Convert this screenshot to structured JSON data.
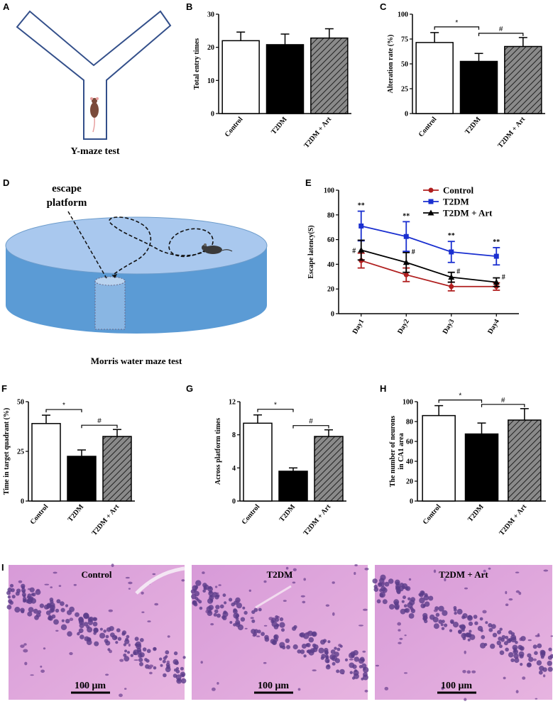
{
  "colors": {
    "control": "#ffffff",
    "t2dm": "#000000",
    "art": "#8a8a8a",
    "line_control": "#b01e1e",
    "line_t2dm": "#1a2fd0",
    "line_art": "#000000",
    "water_top": "#a9c8ee",
    "water_side": "#5b9bd5"
  },
  "panelA": {
    "letter": "A",
    "caption": "Y-maze test"
  },
  "panelD": {
    "letter": "D",
    "caption": "Morris water maze test",
    "label_line1": "escape",
    "label_line2": "platform"
  },
  "panelI": {
    "letter": "I",
    "images": [
      {
        "label": "Control",
        "scale": "100 μm"
      },
      {
        "label": "T2DM",
        "scale": "100 μm"
      },
      {
        "label": "T2DM + Art",
        "scale": "100 μm"
      }
    ]
  },
  "chart_data": [
    {
      "id": "B",
      "letter": "B",
      "type": "bar",
      "categories": [
        "Control",
        "T2DM",
        "T2DM + Art"
      ],
      "values": [
        22,
        20.8,
        22.8
      ],
      "errors": [
        2.6,
        3.2,
        2.8
      ],
      "ylabel": "Total entry times",
      "ylim": [
        0,
        30
      ],
      "yticks": [
        0,
        10,
        20,
        30
      ],
      "brackets": []
    },
    {
      "id": "C",
      "letter": "C",
      "type": "bar",
      "categories": [
        "Control",
        "T2DM",
        "T2DM + Art"
      ],
      "values": [
        71.5,
        52.5,
        67.5
      ],
      "errors": [
        10,
        8,
        9
      ],
      "ylabel": "Alteration rate (%)",
      "ylim": [
        0,
        100
      ],
      "yticks": [
        0,
        25,
        50,
        75,
        100
      ],
      "brackets": [
        {
          "from": 0,
          "to": 1,
          "label": "*"
        },
        {
          "from": 1,
          "to": 2,
          "label": "#"
        }
      ]
    },
    {
      "id": "F",
      "letter": "F",
      "type": "bar",
      "categories": [
        "Control",
        "T2DM",
        "T2DM + Art"
      ],
      "values": [
        39,
        22.5,
        32.5
      ],
      "errors": [
        4.2,
        3.2,
        3.5
      ],
      "ylabel": "Time in target quadrant (%)",
      "ylim": [
        0,
        50
      ],
      "yticks": [
        0,
        25,
        50
      ],
      "brackets": [
        {
          "from": 0,
          "to": 1,
          "label": "*"
        },
        {
          "from": 1,
          "to": 2,
          "label": "#"
        }
      ]
    },
    {
      "id": "G",
      "letter": "G",
      "type": "bar",
      "categories": [
        "Control",
        "T2DM",
        "T2DM + Art"
      ],
      "values": [
        9.4,
        3.6,
        7.8
      ],
      "errors": [
        1.0,
        0.4,
        0.8
      ],
      "ylabel": "Across platform times",
      "ylim": [
        0,
        12
      ],
      "yticks": [
        0,
        4,
        8,
        12
      ],
      "brackets": [
        {
          "from": 0,
          "to": 1,
          "label": "*"
        },
        {
          "from": 1,
          "to": 2,
          "label": "#"
        }
      ]
    },
    {
      "id": "H",
      "letter": "H",
      "type": "bar",
      "categories": [
        "Control",
        "T2DM",
        "T2DM + Art"
      ],
      "values": [
        86,
        67.5,
        81.5
      ],
      "errors": [
        10,
        11,
        11.5
      ],
      "ylabel": "The number of neurons in CA1 area",
      "ylabel_lines": [
        "The number of neurons",
        "in CA1 area"
      ],
      "ylim": [
        0,
        100
      ],
      "yticks": [
        0,
        20,
        40,
        60,
        80,
        100
      ],
      "brackets": [
        {
          "from": 0,
          "to": 1,
          "label": "*"
        },
        {
          "from": 1,
          "to": 2,
          "label": "#"
        }
      ]
    },
    {
      "id": "E",
      "letter": "E",
      "type": "line",
      "x": [
        "Day1",
        "Day2",
        "Day3",
        "Day4"
      ],
      "ylabel": "Escape latency(S)",
      "ylim": [
        0,
        100
      ],
      "yticks": [
        0,
        20,
        40,
        60,
        80,
        100
      ],
      "series": [
        {
          "name": "Control",
          "values": [
            43,
            31.5,
            22,
            22
          ],
          "errors": [
            6,
            5.5,
            3.5,
            3
          ],
          "marker": "circle"
        },
        {
          "name": "T2DM",
          "values": [
            71,
            62.5,
            50,
            46.5
          ],
          "errors": [
            12,
            12,
            8.5,
            7
          ],
          "marker": "square"
        },
        {
          "name": "T2DM + Art",
          "values": [
            51.5,
            41.5,
            29.5,
            25.5
          ],
          "errors": [
            8,
            8,
            4,
            3.5
          ],
          "marker": "triangle"
        }
      ],
      "annotations": [
        {
          "day": 0,
          "text": "**"
        },
        {
          "day": 1,
          "text": "**"
        },
        {
          "day": 2,
          "text": "**"
        },
        {
          "day": 3,
          "text": "**"
        },
        {
          "day": 0,
          "text": "#"
        },
        {
          "day": 1,
          "text": "#"
        },
        {
          "day": 2,
          "text": "#"
        },
        {
          "day": 3,
          "text": "#"
        }
      ]
    }
  ]
}
